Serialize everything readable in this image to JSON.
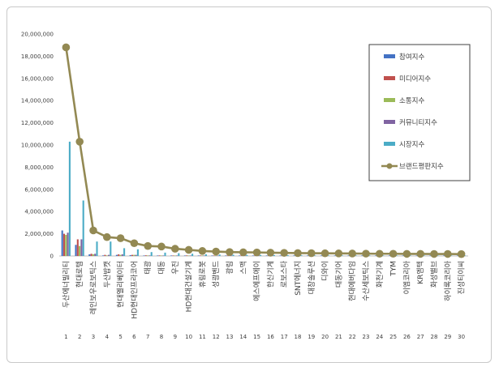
{
  "chart_data": {
    "type": "bar",
    "ylim": [
      0,
      20000000
    ],
    "ytick_labels": [
      "0",
      "2,000,000",
      "4,000,000",
      "6,000,000",
      "8,000,000",
      "10,000,000",
      "12,000,000",
      "14,000,000",
      "16,000,000",
      "18,000,000",
      "20,000,000"
    ],
    "ytick_values": [
      0,
      2000000,
      4000000,
      6000000,
      8000000,
      10000000,
      12000000,
      14000000,
      16000000,
      18000000,
      20000000
    ],
    "numbers": [
      "1",
      "2",
      "3",
      "4",
      "5",
      "6",
      "7",
      "8",
      "9",
      "10",
      "11",
      "12",
      "13",
      "14",
      "15",
      "16",
      "17",
      "18",
      "19",
      "20",
      "21",
      "22",
      "23",
      "24",
      "25",
      "26",
      "27",
      "28",
      "29",
      "30"
    ],
    "categories": [
      "두산에너빌리티",
      "현대로템",
      "레인보우로보틱스",
      "두산밥캣",
      "현대엘리베이터",
      "HD현대인프라코어",
      "태광",
      "대동",
      "우진",
      "HD현대건설기계",
      "휴림로봇",
      "성광벤드",
      "광림",
      "스맥",
      "에스에프에이",
      "한신기계",
      "로보스타",
      "SNT에너지",
      "대창솔루션",
      "디와이",
      "대동기어",
      "현대에버다임",
      "수산세보틱스",
      "화천기계",
      "TYM",
      "이엠코리아",
      "KR엠텍",
      "화성밸브",
      "하이록코리아",
      "진성티이씨"
    ],
    "legend_position": "top-right",
    "grid": false,
    "series": [
      {
        "name": "참여지수",
        "color": "#4472c4",
        "kind": "bar",
        "values": [
          2300000,
          1000000,
          150000,
          50000,
          100000,
          80000,
          40000,
          40000,
          30000,
          40000,
          20000,
          20000,
          15000,
          15000,
          15000,
          12000,
          12000,
          12000,
          10000,
          10000,
          10000,
          10000,
          10000,
          8000,
          8000,
          8000,
          8000,
          8000,
          8000,
          8000
        ]
      },
      {
        "name": "미디어지수",
        "color": "#c0504d",
        "kind": "bar",
        "values": [
          2000000,
          1500000,
          200000,
          100000,
          150000,
          100000,
          60000,
          50000,
          40000,
          50000,
          20000,
          20000,
          15000,
          15000,
          15000,
          12000,
          12000,
          12000,
          10000,
          10000,
          10000,
          10000,
          10000,
          8000,
          8000,
          8000,
          8000,
          8000,
          8000,
          8000
        ]
      },
      {
        "name": "소통지수",
        "color": "#9bbb59",
        "kind": "bar",
        "values": [
          1900000,
          900000,
          150000,
          50000,
          100000,
          100000,
          50000,
          40000,
          30000,
          40000,
          20000,
          20000,
          15000,
          15000,
          15000,
          12000,
          12000,
          12000,
          10000,
          10000,
          10000,
          10000,
          10000,
          8000,
          8000,
          8000,
          8000,
          8000,
          8000,
          8000
        ]
      },
      {
        "name": "커뮤니티지수",
        "color": "#8064a2",
        "kind": "bar",
        "values": [
          2100000,
          1500000,
          200000,
          100000,
          150000,
          100000,
          50000,
          40000,
          30000,
          40000,
          20000,
          20000,
          15000,
          15000,
          15000,
          12000,
          12000,
          12000,
          10000,
          10000,
          10000,
          10000,
          10000,
          8000,
          8000,
          8000,
          8000,
          8000,
          8000,
          8000
        ]
      },
      {
        "name": "시장지수",
        "color": "#4bacc6",
        "kind": "bar",
        "values": [
          10300000,
          5000000,
          1300000,
          1300000,
          700000,
          600000,
          350000,
          300000,
          250000,
          200000,
          150000,
          130000,
          110000,
          100000,
          90000,
          80000,
          70000,
          60000,
          50000,
          40000,
          40000,
          30000,
          30000,
          30000,
          20000,
          20000,
          20000,
          20000,
          20000,
          20000
        ]
      },
      {
        "name": "브랜드평판지수",
        "color": "#938953",
        "kind": "line",
        "values": [
          18800000,
          10300000,
          2300000,
          1700000,
          1600000,
          1150000,
          900000,
          850000,
          650000,
          550000,
          450000,
          400000,
          350000,
          330000,
          320000,
          300000,
          280000,
          260000,
          250000,
          240000,
          230000,
          220000,
          210000,
          200000,
          200000,
          190000,
          190000,
          180000,
          180000,
          170000
        ]
      }
    ]
  }
}
